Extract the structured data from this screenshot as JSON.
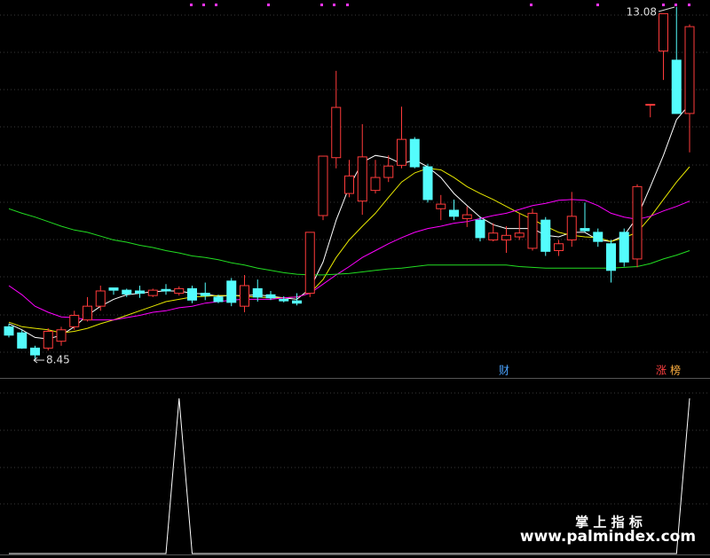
{
  "chart_data": {
    "type": "candlestick",
    "open": [
      8.88,
      8.8,
      8.6,
      8.6,
      8.69,
      8.88,
      8.97,
      9.15,
      9.39,
      9.36,
      9.35,
      9.29,
      9.37,
      9.32,
      9.38,
      9.32,
      9.27,
      9.48,
      9.15,
      9.38,
      9.3,
      9.24,
      9.22,
      9.32,
      10.34,
      11.1,
      10.63,
      10.53,
      10.67,
      10.84,
      11.0,
      11.34,
      10.98,
      10.43,
      10.41,
      10.3,
      10.28,
      10.02,
      10.02,
      10.06,
      9.91,
      10.28,
      9.88,
      10.02,
      10.17,
      10.12,
      9.97,
      10.12,
      9.77,
      11.8,
      12.5,
      12.38,
      11.68
    ],
    "high": [
      8.92,
      8.84,
      8.63,
      8.86,
      8.88,
      9.09,
      9.27,
      9.42,
      9.39,
      9.38,
      9.42,
      9.38,
      9.44,
      9.41,
      9.42,
      9.46,
      9.3,
      9.52,
      9.56,
      9.5,
      9.35,
      9.28,
      9.32,
      10.12,
      11.12,
      12.24,
      11.07,
      11.54,
      11.07,
      11.13,
      11.77,
      11.37,
      11.02,
      10.61,
      10.55,
      10.46,
      10.32,
      10.24,
      10.2,
      10.37,
      10.43,
      10.32,
      10.02,
      10.65,
      10.51,
      10.17,
      10.02,
      10.17,
      10.75,
      11.8,
      12.98,
      13.08,
      12.85
    ],
    "low": [
      8.74,
      8.59,
      8.45,
      8.57,
      8.63,
      8.84,
      8.95,
      9.09,
      9.3,
      9.27,
      9.26,
      9.27,
      9.3,
      9.29,
      9.19,
      9.23,
      9.19,
      9.15,
      9.07,
      9.21,
      9.23,
      9.2,
      9.16,
      9.27,
      10.28,
      10.96,
      10.58,
      10.35,
      10.63,
      10.78,
      10.96,
      10.96,
      10.51,
      10.28,
      10.28,
      10.19,
      10.0,
      10.0,
      9.85,
      10.02,
      9.88,
      9.81,
      9.81,
      9.93,
      10.12,
      9.93,
      9.46,
      9.67,
      9.66,
      11.63,
      12.12,
      11.68,
      11.17
    ],
    "close": [
      8.77,
      8.6,
      8.51,
      8.82,
      8.84,
      9.03,
      9.15,
      9.35,
      9.36,
      9.31,
      9.32,
      9.36,
      9.35,
      9.38,
      9.23,
      9.29,
      9.21,
      9.2,
      9.42,
      9.27,
      9.26,
      9.22,
      9.19,
      10.12,
      11.12,
      11.76,
      10.86,
      11.11,
      10.84,
      10.99,
      11.34,
      10.98,
      10.55,
      10.49,
      10.33,
      10.35,
      10.05,
      10.11,
      10.08,
      10.11,
      10.37,
      9.87,
      9.97,
      10.33,
      10.14,
      10.0,
      9.62,
      9.73,
      10.72,
      11.8,
      12.99,
      11.68,
      12.82
    ],
    "up_color": "#ff3b3b",
    "down_color": "#54fcfc",
    "ylim": [
      8.22,
      13.17
    ],
    "moving_averages": [
      {
        "color": "#ffffff",
        "values": [
          8.92,
          8.84,
          8.74,
          8.72,
          8.77,
          8.88,
          9.03,
          9.15,
          9.24,
          9.3,
          9.32,
          9.34,
          9.35,
          9.35,
          9.32,
          9.31,
          9.28,
          9.29,
          9.29,
          9.3,
          9.28,
          9.26,
          9.24,
          9.38,
          9.73,
          10.28,
          10.72,
          11.04,
          11.13,
          11.1,
          11.02,
          11.07,
          10.98,
          10.84,
          10.63,
          10.47,
          10.32,
          10.22,
          10.17,
          10.17,
          10.17,
          10.08,
          10.06,
          10.12,
          10.12,
          10.02,
          10.0,
          10.08,
          10.32,
          10.72,
          11.13,
          11.6,
          11.8
        ]
      },
      {
        "color": "#e8e800",
        "values": [
          8.94,
          8.88,
          8.86,
          8.84,
          8.8,
          8.82,
          8.86,
          8.92,
          8.97,
          9.03,
          9.09,
          9.15,
          9.21,
          9.24,
          9.27,
          9.28,
          9.29,
          9.29,
          9.28,
          9.27,
          9.26,
          9.26,
          9.27,
          9.32,
          9.5,
          9.79,
          10.02,
          10.2,
          10.37,
          10.58,
          10.78,
          10.9,
          10.96,
          10.94,
          10.84,
          10.72,
          10.63,
          10.55,
          10.46,
          10.37,
          10.29,
          10.2,
          10.12,
          10.08,
          10.06,
          10.05,
          10.0,
          10.05,
          10.12,
          10.32,
          10.55,
          10.78,
          10.98
        ]
      },
      {
        "color": "#ff00ff",
        "values": [
          9.42,
          9.3,
          9.15,
          9.07,
          9.01,
          9.0,
          8.97,
          8.97,
          8.97,
          9.0,
          9.03,
          9.07,
          9.09,
          9.13,
          9.15,
          9.19,
          9.21,
          9.23,
          9.24,
          9.24,
          9.24,
          9.26,
          9.27,
          9.32,
          9.44,
          9.56,
          9.67,
          9.79,
          9.88,
          9.97,
          10.05,
          10.12,
          10.17,
          10.2,
          10.24,
          10.26,
          10.3,
          10.34,
          10.37,
          10.42,
          10.47,
          10.5,
          10.54,
          10.55,
          10.54,
          10.47,
          10.37,
          10.32,
          10.29,
          10.33,
          10.4,
          10.46,
          10.53
        ]
      },
      {
        "color": "#22dd22",
        "values": [
          10.43,
          10.37,
          10.32,
          10.26,
          10.2,
          10.15,
          10.12,
          10.07,
          10.02,
          9.99,
          9.95,
          9.92,
          9.88,
          9.85,
          9.81,
          9.79,
          9.76,
          9.72,
          9.69,
          9.65,
          9.62,
          9.59,
          9.57,
          9.56,
          9.56,
          9.57,
          9.58,
          9.6,
          9.62,
          9.64,
          9.65,
          9.67,
          9.69,
          9.69,
          9.69,
          9.69,
          9.69,
          9.69,
          9.69,
          9.67,
          9.66,
          9.65,
          9.65,
          9.65,
          9.65,
          9.65,
          9.65,
          9.66,
          9.67,
          9.71,
          9.77,
          9.82,
          9.88
        ]
      }
    ],
    "annotations": [
      {
        "text": "8.45"
      },
      {
        "text": "13.08"
      }
    ],
    "markers": [
      {
        "text": "财",
        "color": "#4aa3ff"
      },
      {
        "text": "涨",
        "color": "#ff4040"
      },
      {
        "text": "榜",
        "color": "#ffb040"
      }
    ],
    "indicator": {
      "type": "line",
      "color": "#ffffff",
      "ylim": [
        0,
        1
      ],
      "values": [
        0,
        0,
        0,
        0,
        0,
        0,
        0,
        0,
        0,
        0,
        0,
        0,
        0,
        1,
        0,
        0,
        0,
        0,
        0,
        0,
        0,
        0,
        0,
        0,
        0,
        0,
        0,
        0,
        0,
        0,
        0,
        0,
        0,
        0,
        0,
        0,
        0,
        0,
        0,
        0,
        0,
        0,
        0,
        0,
        0,
        0,
        0,
        0,
        0,
        0,
        0,
        0,
        1
      ]
    }
  },
  "watermark": {
    "title": "掌 上 指 标",
    "url": "www.palmindex.com"
  }
}
